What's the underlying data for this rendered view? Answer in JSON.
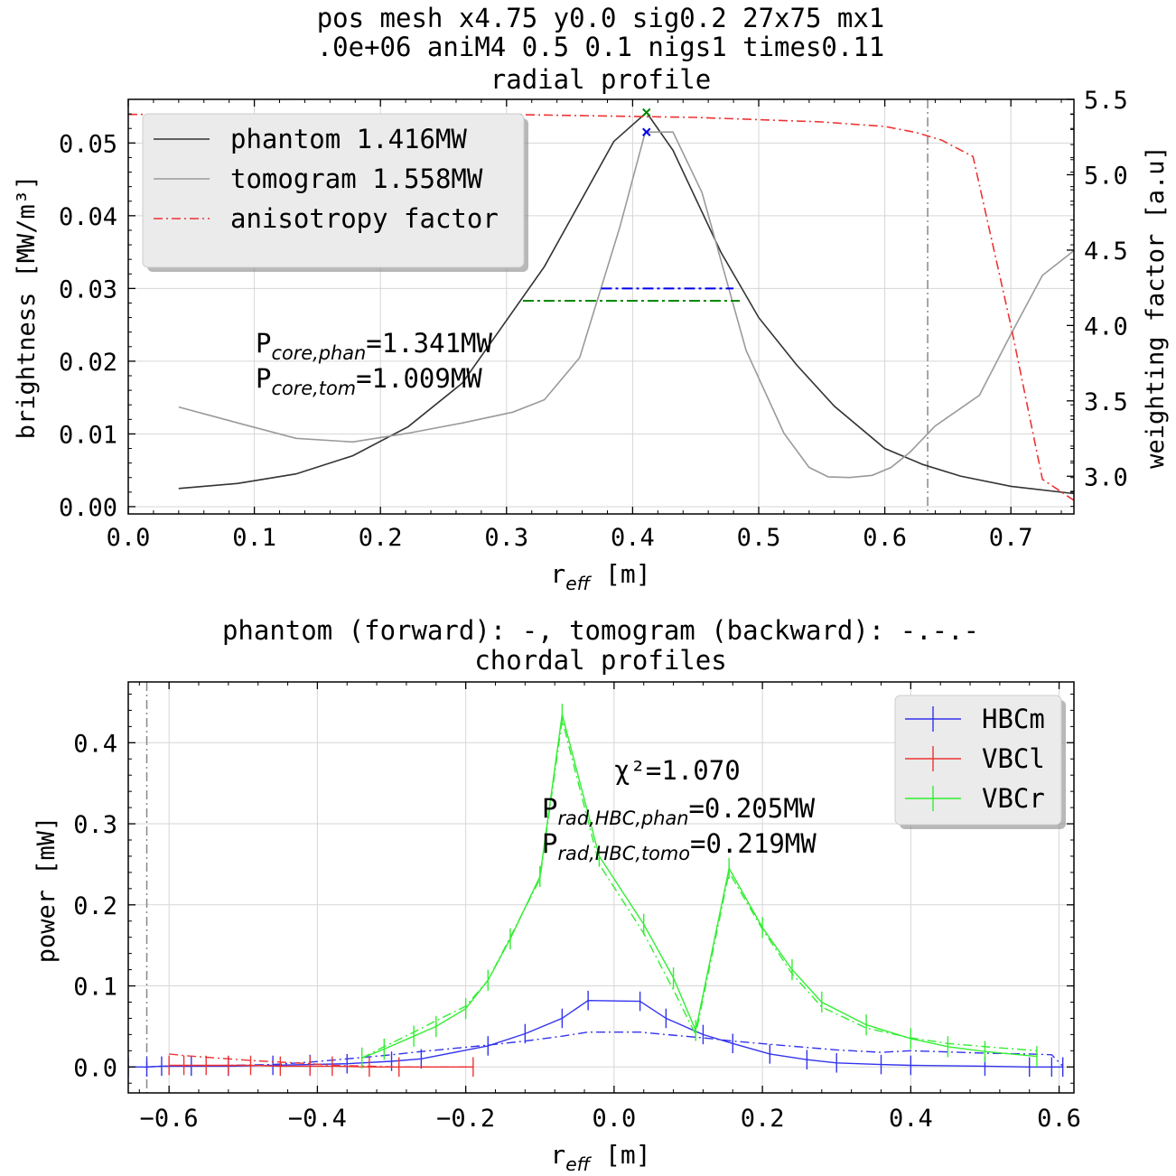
{
  "chart_data": [
    {
      "type": "line",
      "title_lines": [
        "pos mesh x4.75 y0.0 sig0.2 27x75 mx1",
        ".0e+06 aniM4 0.5 0.1 nigs1 times0.11",
        "radial profile"
      ],
      "xlabel": {
        "main": "r",
        "sub": "eff",
        "unit": " [m]"
      },
      "ylabel": "brightness [MW/m³]",
      "ylabel2": "weighting factor [a.u]",
      "xlim": [
        0.0,
        0.75
      ],
      "ylim": [
        -0.001,
        0.056
      ],
      "y2lim": [
        2.75,
        5.5
      ],
      "xticks": [
        "0.0",
        "0.1",
        "0.2",
        "0.3",
        "0.4",
        "0.5",
        "0.6",
        "0.7"
      ],
      "yticks": [
        "0.00",
        "0.01",
        "0.02",
        "0.03",
        "0.04",
        "0.05"
      ],
      "y2ticks": [
        "3.0",
        "3.5",
        "4.0",
        "4.5",
        "5.0",
        "5.5"
      ],
      "grid": true,
      "legend_position": "upper-left",
      "series": [
        {
          "name": "phantom 1.416MW",
          "axis": "left",
          "color": "#333333",
          "dash": "solid",
          "x": [
            0.04,
            0.087,
            0.133,
            0.178,
            0.222,
            0.265,
            0.33,
            0.385,
            0.411,
            0.432,
            0.47,
            0.5,
            0.53,
            0.56,
            0.6,
            0.63,
            0.66,
            0.7,
            0.75
          ],
          "y": [
            0.0025,
            0.0032,
            0.0045,
            0.007,
            0.011,
            0.017,
            0.033,
            0.0502,
            0.0542,
            0.049,
            0.035,
            0.026,
            0.0195,
            0.0138,
            0.008,
            0.0058,
            0.0042,
            0.0028,
            0.0018
          ]
        },
        {
          "name": "tomogram 1.558MW",
          "axis": "left",
          "color": "#9a9a9a",
          "dash": "solid",
          "x": [
            0.04,
            0.087,
            0.133,
            0.178,
            0.222,
            0.265,
            0.305,
            0.33,
            0.358,
            0.39,
            0.41,
            0.432,
            0.455,
            0.49,
            0.52,
            0.54,
            0.555,
            0.572,
            0.59,
            0.605,
            0.62,
            0.64,
            0.675,
            0.7,
            0.725,
            0.75
          ],
          "y": [
            0.0137,
            0.0115,
            0.0094,
            0.0089,
            0.0101,
            0.0115,
            0.013,
            0.0147,
            0.0205,
            0.0385,
            0.0515,
            0.0515,
            0.0432,
            0.0215,
            0.0101,
            0.0054,
            0.0041,
            0.004,
            0.0043,
            0.0054,
            0.0075,
            0.0111,
            0.0153,
            0.0237,
            0.0318,
            0.0352
          ]
        },
        {
          "name": "anisotropy factor",
          "axis": "right",
          "color": "#ee3333",
          "dash": "dashdot",
          "x": [
            0.0,
            0.3,
            0.45,
            0.55,
            0.6,
            0.625,
            0.645,
            0.67,
            0.7,
            0.725,
            0.75
          ],
          "y": [
            5.4,
            5.4,
            5.38,
            5.35,
            5.32,
            5.28,
            5.23,
            5.12,
            4.0,
            2.98,
            2.84
          ]
        }
      ],
      "markers": [
        {
          "x": 0.411,
          "y": 0.0542,
          "symbol": "x",
          "color": "#008800"
        },
        {
          "x": 0.411,
          "y": 0.0515,
          "symbol": "x",
          "color": "#0000ee"
        }
      ],
      "hlines": [
        {
          "y": 0.03,
          "x0": 0.375,
          "x1": 0.48,
          "color": "#0000ee",
          "dash": "dashdot"
        },
        {
          "y": 0.0283,
          "x0": 0.313,
          "x1": 0.485,
          "color": "#008800",
          "dash": "dashdot"
        }
      ],
      "vlines": [
        {
          "x": 0.634,
          "color": "#888888",
          "dash": "dashdot"
        }
      ],
      "annotations": [
        {
          "main": "P",
          "sub": "core,phan",
          "value": "=1.341MW",
          "x": 0.1,
          "y": 0.0215
        },
        {
          "main": "P",
          "sub": "core,tom",
          "value": "=1.009MW",
          "x": 0.1,
          "y": 0.0167
        }
      ]
    },
    {
      "type": "line",
      "title_lines": [
        "phantom (forward): -,   tomogram (backward): -.-.-",
        "chordal profiles"
      ],
      "xlabel": {
        "main": "r",
        "sub": "eff",
        "unit": " [m]"
      },
      "ylabel": "power [mW]",
      "xlim": [
        -0.655,
        0.62
      ],
      "ylim": [
        -0.032,
        0.475
      ],
      "xticks": [
        "−0.6",
        "−0.4",
        "−0.2",
        "0.0",
        "0.2",
        "0.4",
        "0.6"
      ],
      "xtick_values": [
        -0.6,
        -0.4,
        -0.2,
        0.0,
        0.2,
        0.4,
        0.6
      ],
      "yticks": [
        "0.0",
        "0.1",
        "0.2",
        "0.3",
        "0.4"
      ],
      "ytick_values": [
        0.0,
        0.1,
        0.2,
        0.3,
        0.4
      ],
      "grid": true,
      "legend_position": "upper-right",
      "series": [
        {
          "name": "HBCm",
          "color": "#3333ee",
          "x": [
            -0.655,
            -0.63,
            -0.61,
            -0.57,
            -0.52,
            -0.46,
            -0.41,
            -0.36,
            -0.3,
            -0.26,
            -0.17,
            -0.12,
            -0.07,
            -0.035,
            0.035,
            0.07,
            0.12,
            0.16,
            0.21,
            0.26,
            0.3,
            0.36,
            0.4,
            0.5,
            0.56,
            0.59,
            0.605
          ],
          "y": [
            0.0,
            0.0,
            0.001,
            0.001,
            0.001,
            0.002,
            0.003,
            0.004,
            0.007,
            0.01,
            0.026,
            0.041,
            0.06,
            0.082,
            0.081,
            0.06,
            0.04,
            0.029,
            0.016,
            0.009,
            0.005,
            0.003,
            0.002,
            0.001,
            0.0,
            0.0,
            0.0
          ],
          "err": 0.012,
          "tomo_y": [
            0.0,
            0.0,
            0.001,
            0.001,
            0.002,
            0.003,
            0.006,
            0.01,
            0.015,
            0.019,
            0.027,
            0.032,
            0.038,
            0.043,
            0.043,
            0.04,
            0.036,
            0.032,
            0.028,
            0.024,
            0.021,
            0.018,
            0.02,
            0.017,
            0.016,
            0.015,
            0.001
          ]
        },
        {
          "name": "VBCl",
          "color": "#ee3333",
          "x": [
            -0.6,
            -0.58,
            -0.55,
            -0.52,
            -0.49,
            -0.45,
            -0.41,
            -0.38,
            -0.33,
            -0.29,
            -0.19
          ],
          "y": [
            0.002,
            0.002,
            0.002,
            0.002,
            0.002,
            0.001,
            0.001,
            0.001,
            0.0,
            0.0,
            0.0
          ],
          "err": 0.012,
          "tomo_y": [
            0.016,
            0.014,
            0.012,
            0.01,
            0.008,
            0.006,
            0.004,
            0.002,
            0.001,
            0.0,
            0.0
          ]
        },
        {
          "name": "VBCr",
          "color": "#33ee33",
          "x": [
            -0.34,
            -0.31,
            -0.27,
            -0.24,
            -0.2,
            -0.17,
            -0.14,
            -0.1,
            -0.07,
            -0.02,
            0.04,
            0.08,
            0.11,
            0.155,
            0.2,
            0.24,
            0.28,
            0.34,
            0.4,
            0.45,
            0.5,
            0.57
          ],
          "y": [
            0.011,
            0.022,
            0.038,
            0.05,
            0.072,
            0.107,
            0.158,
            0.235,
            0.435,
            0.26,
            0.176,
            0.11,
            0.045,
            0.245,
            0.172,
            0.12,
            0.08,
            0.052,
            0.035,
            0.025,
            0.019,
            0.013
          ],
          "err": 0.013,
          "tomo_y": [
            0.011,
            0.025,
            0.043,
            0.057,
            0.075,
            0.107,
            0.16,
            0.232,
            0.428,
            0.25,
            0.165,
            0.095,
            0.04,
            0.24,
            0.17,
            0.115,
            0.074,
            0.048,
            0.036,
            0.029,
            0.025,
            0.02
          ]
        }
      ],
      "vlines": [
        {
          "x": -0.63,
          "color": "#888888",
          "dash": "dashdot"
        }
      ],
      "annotations": [
        {
          "text": "χ²=1.070"
        },
        {
          "main": "P",
          "sub": "rad,HBC,phan",
          "value": "=0.205MW"
        },
        {
          "main": "P",
          "sub": "rad,HBC,tomo",
          "value": "=0.219MW"
        }
      ]
    }
  ]
}
